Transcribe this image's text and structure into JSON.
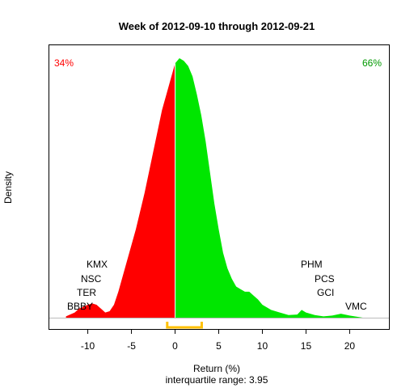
{
  "chart_data": {
    "type": "area",
    "title": "Week of 2012-09-10 through 2012-09-21",
    "xlabel": "Return (%)",
    "ylabel": "Density",
    "subtitle": "interquartile range: 3.95",
    "xlim": [
      -14.5,
      24.5
    ],
    "ylim": [
      0,
      1.0
    ],
    "xticks": [
      -10,
      -5,
      0,
      5,
      10,
      15,
      20
    ],
    "split_at": 0,
    "negative_share": "34%",
    "positive_share": "66%",
    "colors": {
      "negative": "#ff0000",
      "positive": "#00e600",
      "iqr": "#ffc000",
      "negative_text": "#ff0000",
      "positive_text": "#009900"
    },
    "density": {
      "x": [
        -12.5,
        -11.5,
        -11,
        -10,
        -9.5,
        -9,
        -8.5,
        -8,
        -7.5,
        -7,
        -6.5,
        -6,
        -5.5,
        -5,
        -4.5,
        -4,
        -3.5,
        -3,
        -2.5,
        -2,
        -1.5,
        -1,
        -0.5,
        0,
        0.5,
        1,
        1.5,
        2,
        2.5,
        3,
        3.5,
        4,
        4.5,
        5,
        5.5,
        6,
        6.5,
        7,
        7.5,
        8,
        8.5,
        9,
        9.5,
        10,
        11,
        12,
        13,
        14,
        14.5,
        15,
        16,
        17,
        18,
        19,
        20,
        21.5
      ],
      "y": [
        0.005,
        0.02,
        0.035,
        0.05,
        0.055,
        0.05,
        0.035,
        0.02,
        0.025,
        0.05,
        0.1,
        0.16,
        0.22,
        0.28,
        0.34,
        0.41,
        0.48,
        0.56,
        0.64,
        0.72,
        0.8,
        0.86,
        0.92,
        0.98,
        1.0,
        0.99,
        0.97,
        0.93,
        0.86,
        0.78,
        0.68,
        0.56,
        0.44,
        0.34,
        0.25,
        0.19,
        0.15,
        0.12,
        0.11,
        0.1,
        0.1,
        0.085,
        0.07,
        0.05,
        0.03,
        0.02,
        0.01,
        0.012,
        0.03,
        0.02,
        0.01,
        0.005,
        0.008,
        0.015,
        0.008,
        0.0
      ]
    },
    "iqr": {
      "from": -0.9,
      "to": 3.05
    },
    "annotations_left": [
      "KMX",
      "NSC",
      "TER",
      "BBBY"
    ],
    "annotations_right": [
      "PHM",
      "PCS",
      "GCI",
      "VMC"
    ]
  }
}
